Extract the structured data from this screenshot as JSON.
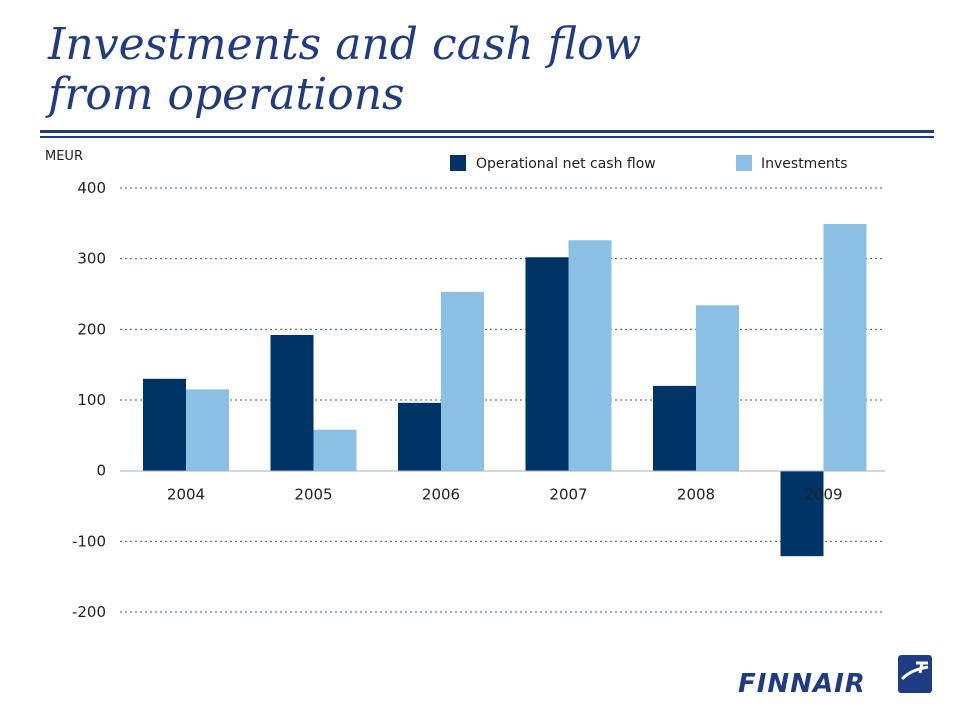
{
  "slide": {
    "title_line1": "Investments and cash flow",
    "title_line2": "from operations"
  },
  "logo": {
    "text": "FINNAIR",
    "icon": "finnair-logo-icon"
  },
  "colors": {
    "title": "#1f3c82",
    "operational": "#003366",
    "investments": "#8bbfe3",
    "grid": "#3a6b3a"
  },
  "chart_data": {
    "type": "bar",
    "categories": [
      "2004",
      "2005",
      "2006",
      "2007",
      "2008",
      "2009"
    ],
    "series": [
      {
        "name": "Operational net cash flow",
        "values": [
          130,
          192,
          96,
          302,
          120,
          -121
        ]
      },
      {
        "name": "Investments",
        "values": [
          115,
          58,
          253,
          326,
          234,
          349
        ]
      }
    ],
    "ylabel": "MEUR",
    "ylim": [
      -200,
      400
    ],
    "yticks": [
      "-200",
      "-100",
      "0",
      "100",
      "200",
      "300",
      "400"
    ],
    "grid": true,
    "legend": "top-right"
  }
}
